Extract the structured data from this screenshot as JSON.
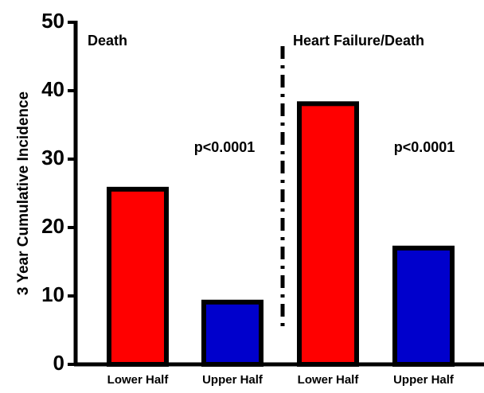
{
  "chart_data": {
    "type": "bar",
    "y_label": "3 Year Cumulative Incidence",
    "categories": [
      "Lower Half",
      "Upper Half",
      "Lower Half",
      "Upper Half"
    ],
    "values": [
      25.6,
      9.1,
      38.1,
      17
    ],
    "colors": [
      "#ff0000",
      "#0000cc",
      "#ff0000",
      "#0000cc"
    ],
    "ylim": [
      0,
      50
    ],
    "yticks": [
      0,
      10,
      20,
      30,
      40,
      50
    ],
    "annotations": [
      "Death",
      "p<0.0001",
      "Heart Failure/Death",
      "p<0.0001"
    ]
  }
}
